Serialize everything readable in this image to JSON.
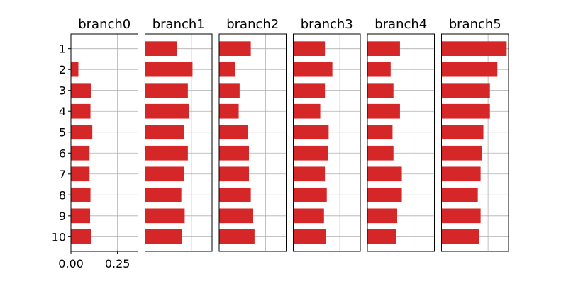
{
  "chart_data": {
    "type": "bar",
    "orientation": "horizontal",
    "shared_categories": [
      "1",
      "2",
      "3",
      "4",
      "5",
      "6",
      "7",
      "8",
      "9",
      "10"
    ],
    "shared_xlim": [
      0,
      0.36
    ],
    "x_ticks": [
      0.0,
      0.25
    ],
    "x_tick_labels": [
      "0.00",
      "0.25"
    ],
    "bar_color": "#d62728",
    "grid_color": "#b0b0b0",
    "grid": true,
    "panels": [
      {
        "title": "branch0",
        "values": [
          0.0,
          0.04,
          0.11,
          0.105,
          0.115,
          0.1,
          0.1,
          0.105,
          0.103,
          0.11
        ]
      },
      {
        "title": "branch1",
        "values": [
          0.17,
          0.255,
          0.23,
          0.235,
          0.21,
          0.23,
          0.21,
          0.195,
          0.213,
          0.2
        ]
      },
      {
        "title": "branch2",
        "values": [
          0.17,
          0.085,
          0.11,
          0.105,
          0.155,
          0.16,
          0.16,
          0.17,
          0.18,
          0.19
        ]
      },
      {
        "title": "branch3",
        "values": [
          0.17,
          0.21,
          0.17,
          0.145,
          0.19,
          0.185,
          0.17,
          0.18,
          0.165,
          0.175
        ]
      },
      {
        "title": "branch4",
        "values": [
          0.175,
          0.125,
          0.14,
          0.175,
          0.135,
          0.14,
          0.185,
          0.185,
          0.16,
          0.155
        ]
      },
      {
        "title": "branch5",
        "values": [
          0.35,
          0.3,
          0.26,
          0.26,
          0.225,
          0.217,
          0.21,
          0.195,
          0.21,
          0.2
        ]
      }
    ]
  }
}
